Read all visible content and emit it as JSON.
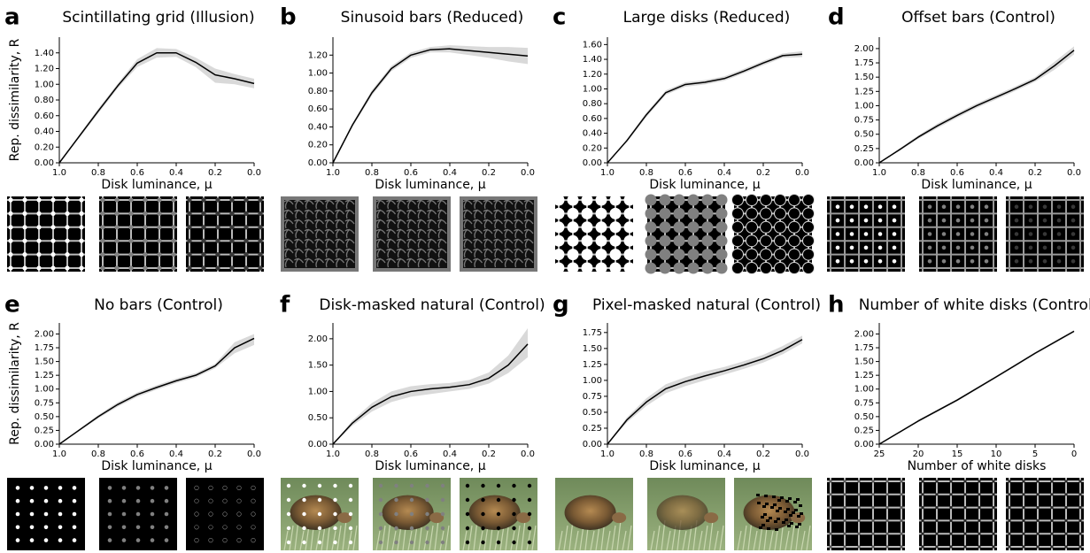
{
  "chart_data": [
    {
      "type": "line",
      "panel": "a",
      "title": "Scintillating grid (Illusion)",
      "xlabel": "Disk luminance, μ",
      "ylabel": "Rep. dissimilarity, R",
      "x": [
        1,
        0.9,
        0.8,
        0.7,
        0.6,
        0.5,
        0.4,
        0.3,
        0.2,
        0.1,
        0
      ],
      "xlim": [
        1,
        0
      ],
      "xticks": [
        {
          "value": 1,
          "label": "1.0"
        },
        0.8,
        0.6,
        0.4,
        0.2,
        {
          "value": 0,
          "label": "0.0"
        }
      ],
      "ylim": [
        0,
        1.6
      ],
      "yticks": [
        {
          "value": 0,
          "label": "0.00"
        },
        {
          "value": 0.2,
          "label": "0.20"
        },
        {
          "value": 0.4,
          "label": "0.40"
        },
        {
          "value": 0.6,
          "label": "0.60"
        },
        {
          "value": 0.8,
          "label": "0.80"
        },
        {
          "value": 1,
          "label": "1.00"
        },
        {
          "value": 1.2,
          "label": "1.20"
        },
        {
          "value": 1.4,
          "label": "1.40"
        }
      ],
      "color": "#000000",
      "band_color": "#d9d9d9",
      "values": [
        0,
        0.33,
        0.66,
        0.98,
        1.27,
        1.4,
        1.4,
        1.28,
        1.12,
        1.07,
        1.01
      ],
      "band": {
        "lower": [
          0,
          0.31,
          0.63,
          0.95,
          1.22,
          1.34,
          1.35,
          1.22,
          1.02,
          1.0,
          0.95
        ],
        "upper": [
          0,
          0.35,
          0.69,
          1.01,
          1.32,
          1.46,
          1.45,
          1.34,
          1.2,
          1.13,
          1.07
        ]
      }
    },
    {
      "type": "line",
      "panel": "b",
      "title": "Sinusoid bars (Reduced)",
      "xlabel": "Disk luminance, μ",
      "x": [
        1,
        0.9,
        0.8,
        0.7,
        0.6,
        0.5,
        0.4,
        0.3,
        0.2,
        0.1,
        0
      ],
      "xlim": [
        1,
        0
      ],
      "xticks": [
        {
          "value": 1,
          "label": "1.0"
        },
        0.8,
        0.6,
        0.4,
        0.2,
        {
          "value": 0,
          "label": "0.0"
        }
      ],
      "ylim": [
        0,
        1.4
      ],
      "yticks": [
        {
          "value": 0,
          "label": "0.00"
        },
        {
          "value": 0.2,
          "label": "0.20"
        },
        {
          "value": 0.4,
          "label": "0.40"
        },
        {
          "value": 0.6,
          "label": "0.60"
        },
        {
          "value": 0.8,
          "label": "0.80"
        },
        {
          "value": 1,
          "label": "1.00"
        },
        {
          "value": 1.2,
          "label": "1.20"
        }
      ],
      "color": "#000000",
      "band_color": "#d9d9d9",
      "values": [
        0,
        0.42,
        0.78,
        1.05,
        1.2,
        1.26,
        1.27,
        1.25,
        1.23,
        1.21,
        1.19
      ],
      "band": {
        "lower": [
          0,
          0.4,
          0.75,
          1.02,
          1.17,
          1.23,
          1.23,
          1.2,
          1.17,
          1.13,
          1.1
        ],
        "upper": [
          0,
          0.44,
          0.81,
          1.08,
          1.23,
          1.29,
          1.31,
          1.3,
          1.29,
          1.29,
          1.28
        ]
      }
    },
    {
      "type": "line",
      "panel": "c",
      "title": "Large disks (Reduced)",
      "xlabel": "Disk luminance, μ",
      "x": [
        1,
        0.9,
        0.8,
        0.7,
        0.6,
        0.5,
        0.4,
        0.3,
        0.2,
        0.1,
        0
      ],
      "xlim": [
        1,
        0
      ],
      "xticks": [
        {
          "value": 1,
          "label": "1.0"
        },
        0.8,
        0.6,
        0.4,
        0.2,
        {
          "value": 0,
          "label": "0.0"
        }
      ],
      "ylim": [
        0,
        1.7
      ],
      "yticks": [
        {
          "value": 0,
          "label": "0.00"
        },
        {
          "value": 0.2,
          "label": "0.20"
        },
        {
          "value": 0.4,
          "label": "0.40"
        },
        {
          "value": 0.6,
          "label": "0.60"
        },
        {
          "value": 0.8,
          "label": "0.80"
        },
        {
          "value": 1,
          "label": "1.00"
        },
        {
          "value": 1.2,
          "label": "1.20"
        },
        {
          "value": 1.4,
          "label": "1.40"
        },
        {
          "value": 1.6,
          "label": "1.60"
        }
      ],
      "color": "#000000",
      "band_color": "#d9d9d9",
      "values": [
        0,
        0.3,
        0.65,
        0.95,
        1.06,
        1.09,
        1.14,
        1.24,
        1.35,
        1.45,
        1.47
      ],
      "band": {
        "lower": [
          0,
          0.28,
          0.62,
          0.92,
          1.03,
          1.06,
          1.11,
          1.21,
          1.32,
          1.42,
          1.43
        ],
        "upper": [
          0,
          0.32,
          0.68,
          0.98,
          1.09,
          1.12,
          1.17,
          1.27,
          1.38,
          1.48,
          1.51
        ]
      }
    },
    {
      "type": "line",
      "panel": "d",
      "title": "Offset bars (Control)",
      "xlabel": "Disk luminance, μ",
      "x": [
        1,
        0.9,
        0.8,
        0.7,
        0.6,
        0.5,
        0.4,
        0.3,
        0.2,
        0.1,
        0
      ],
      "xlim": [
        1,
        0
      ],
      "xticks": [
        {
          "value": 1,
          "label": "1.0"
        },
        0.8,
        0.6,
        0.4,
        0.2,
        {
          "value": 0,
          "label": "0.0"
        }
      ],
      "ylim": [
        0,
        2.2
      ],
      "yticks": [
        {
          "value": 0,
          "label": "0.00"
        },
        0.25,
        {
          "value": 0.5,
          "label": "0.50"
        },
        0.75,
        {
          "value": 1,
          "label": "1.00"
        },
        1.25,
        {
          "value": 1.5,
          "label": "1.50"
        },
        1.75,
        {
          "value": 2,
          "label": "2.00"
        }
      ],
      "color": "#000000",
      "band_color": "#d9d9d9",
      "values": [
        0,
        0.22,
        0.45,
        0.65,
        0.83,
        1.0,
        1.15,
        1.3,
        1.46,
        1.7,
        1.97
      ],
      "band": {
        "lower": [
          0,
          0.2,
          0.42,
          0.61,
          0.79,
          0.96,
          1.11,
          1.26,
          1.42,
          1.63,
          1.9
        ],
        "upper": [
          0,
          0.24,
          0.48,
          0.69,
          0.87,
          1.04,
          1.19,
          1.34,
          1.5,
          1.77,
          2.04
        ]
      }
    },
    {
      "type": "line",
      "panel": "e",
      "title": "No bars (Control)",
      "xlabel": "Disk luminance, μ",
      "ylabel": "Rep. dissimilarity, R",
      "x": [
        1,
        0.9,
        0.8,
        0.7,
        0.6,
        0.5,
        0.4,
        0.3,
        0.2,
        0.1,
        0
      ],
      "xlim": [
        1,
        0
      ],
      "xticks": [
        {
          "value": 1,
          "label": "1.0"
        },
        0.8,
        0.6,
        0.4,
        0.2,
        {
          "value": 0,
          "label": "0.0"
        }
      ],
      "ylim": [
        0,
        2.2
      ],
      "yticks": [
        {
          "value": 0,
          "label": "0.00"
        },
        0.25,
        {
          "value": 0.5,
          "label": "0.50"
        },
        0.75,
        {
          "value": 1,
          "label": "1.00"
        },
        1.25,
        {
          "value": 1.5,
          "label": "1.50"
        },
        1.75,
        {
          "value": 2,
          "label": "2.00"
        }
      ],
      "color": "#000000",
      "band_color": "#d9d9d9",
      "values": [
        0,
        0.25,
        0.5,
        0.72,
        0.9,
        1.03,
        1.15,
        1.25,
        1.42,
        1.75,
        1.92
      ],
      "band": {
        "lower": [
          0,
          0.23,
          0.47,
          0.68,
          0.86,
          0.99,
          1.11,
          1.21,
          1.38,
          1.65,
          1.8
        ],
        "upper": [
          0,
          0.27,
          0.53,
          0.76,
          0.94,
          1.07,
          1.19,
          1.29,
          1.46,
          1.85,
          2.0
        ]
      }
    },
    {
      "type": "line",
      "panel": "f",
      "title": "Disk-masked natural (Control)",
      "xlabel": "Disk luminance, μ",
      "x": [
        1,
        0.9,
        0.8,
        0.7,
        0.6,
        0.5,
        0.4,
        0.3,
        0.2,
        0.1,
        0
      ],
      "xlim": [
        1,
        0
      ],
      "xticks": [
        {
          "value": 1,
          "label": "1.0"
        },
        0.8,
        0.6,
        0.4,
        0.2,
        {
          "value": 0,
          "label": "0.0"
        }
      ],
      "ylim": [
        0,
        2.3
      ],
      "yticks": [
        {
          "value": 0,
          "label": "0.00"
        },
        {
          "value": 0.5,
          "label": "0.50"
        },
        {
          "value": 1,
          "label": "1.00"
        },
        {
          "value": 1.5,
          "label": "1.50"
        },
        {
          "value": 2,
          "label": "2.00"
        }
      ],
      "color": "#000000",
      "band_color": "#d9d9d9",
      "values": [
        0,
        0.4,
        0.7,
        0.9,
        1.0,
        1.05,
        1.08,
        1.13,
        1.25,
        1.5,
        1.9
      ],
      "band": {
        "lower": [
          0,
          0.35,
          0.62,
          0.8,
          0.9,
          0.95,
          1.0,
          1.05,
          1.15,
          1.35,
          1.65
        ],
        "upper": [
          0,
          0.45,
          0.78,
          1.0,
          1.1,
          1.14,
          1.16,
          1.22,
          1.36,
          1.68,
          2.2
        ]
      }
    },
    {
      "type": "line",
      "panel": "g",
      "title": "Pixel-masked natural (Control)",
      "xlabel": "Disk luminance, μ",
      "x": [
        1,
        0.9,
        0.8,
        0.7,
        0.6,
        0.5,
        0.4,
        0.3,
        0.2,
        0.1,
        0
      ],
      "xlim": [
        1,
        0
      ],
      "xticks": [
        {
          "value": 1,
          "label": "1.0"
        },
        0.8,
        0.6,
        0.4,
        0.2,
        {
          "value": 0,
          "label": "0.0"
        }
      ],
      "ylim": [
        0,
        1.9
      ],
      "yticks": [
        {
          "value": 0,
          "label": "0.00"
        },
        0.25,
        {
          "value": 0.5,
          "label": "0.50"
        },
        0.75,
        {
          "value": 1,
          "label": "1.00"
        },
        1.25,
        {
          "value": 1.5,
          "label": "1.50"
        },
        1.75
      ],
      "color": "#000000",
      "band_color": "#d9d9d9",
      "values": [
        0,
        0.38,
        0.66,
        0.87,
        0.98,
        1.07,
        1.15,
        1.24,
        1.34,
        1.47,
        1.64
      ],
      "band": {
        "lower": [
          0,
          0.34,
          0.6,
          0.8,
          0.91,
          1.0,
          1.09,
          1.18,
          1.28,
          1.41,
          1.58
        ],
        "upper": [
          0,
          0.42,
          0.72,
          0.94,
          1.05,
          1.14,
          1.21,
          1.3,
          1.4,
          1.54,
          1.7
        ]
      }
    },
    {
      "type": "line",
      "panel": "h",
      "title": "Number of  white disks (Control)",
      "xlabel": "Number of white disks",
      "x": [
        25,
        20,
        15,
        10,
        5,
        0
      ],
      "xlim": [
        25,
        0
      ],
      "xticks": [
        25,
        20,
        15,
        10,
        5,
        0
      ],
      "ylim": [
        0,
        2.2
      ],
      "yticks": [
        {
          "value": 0,
          "label": "0.00"
        },
        0.25,
        {
          "value": 0.5,
          "label": "0.50"
        },
        0.75,
        {
          "value": 1,
          "label": "1.00"
        },
        1.25,
        {
          "value": 1.5,
          "label": "1.50"
        },
        1.75,
        {
          "value": 2,
          "label": "2.00"
        }
      ],
      "color": "#000000",
      "band_color": "#d9d9d9",
      "values": [
        0,
        0.42,
        0.8,
        1.22,
        1.65,
        2.05
      ],
      "band": {
        "lower": [
          0,
          0.4,
          0.78,
          1.2,
          1.63,
          2.03
        ],
        "upper": [
          0,
          0.44,
          0.82,
          1.24,
          1.67,
          2.07
        ]
      }
    }
  ]
}
